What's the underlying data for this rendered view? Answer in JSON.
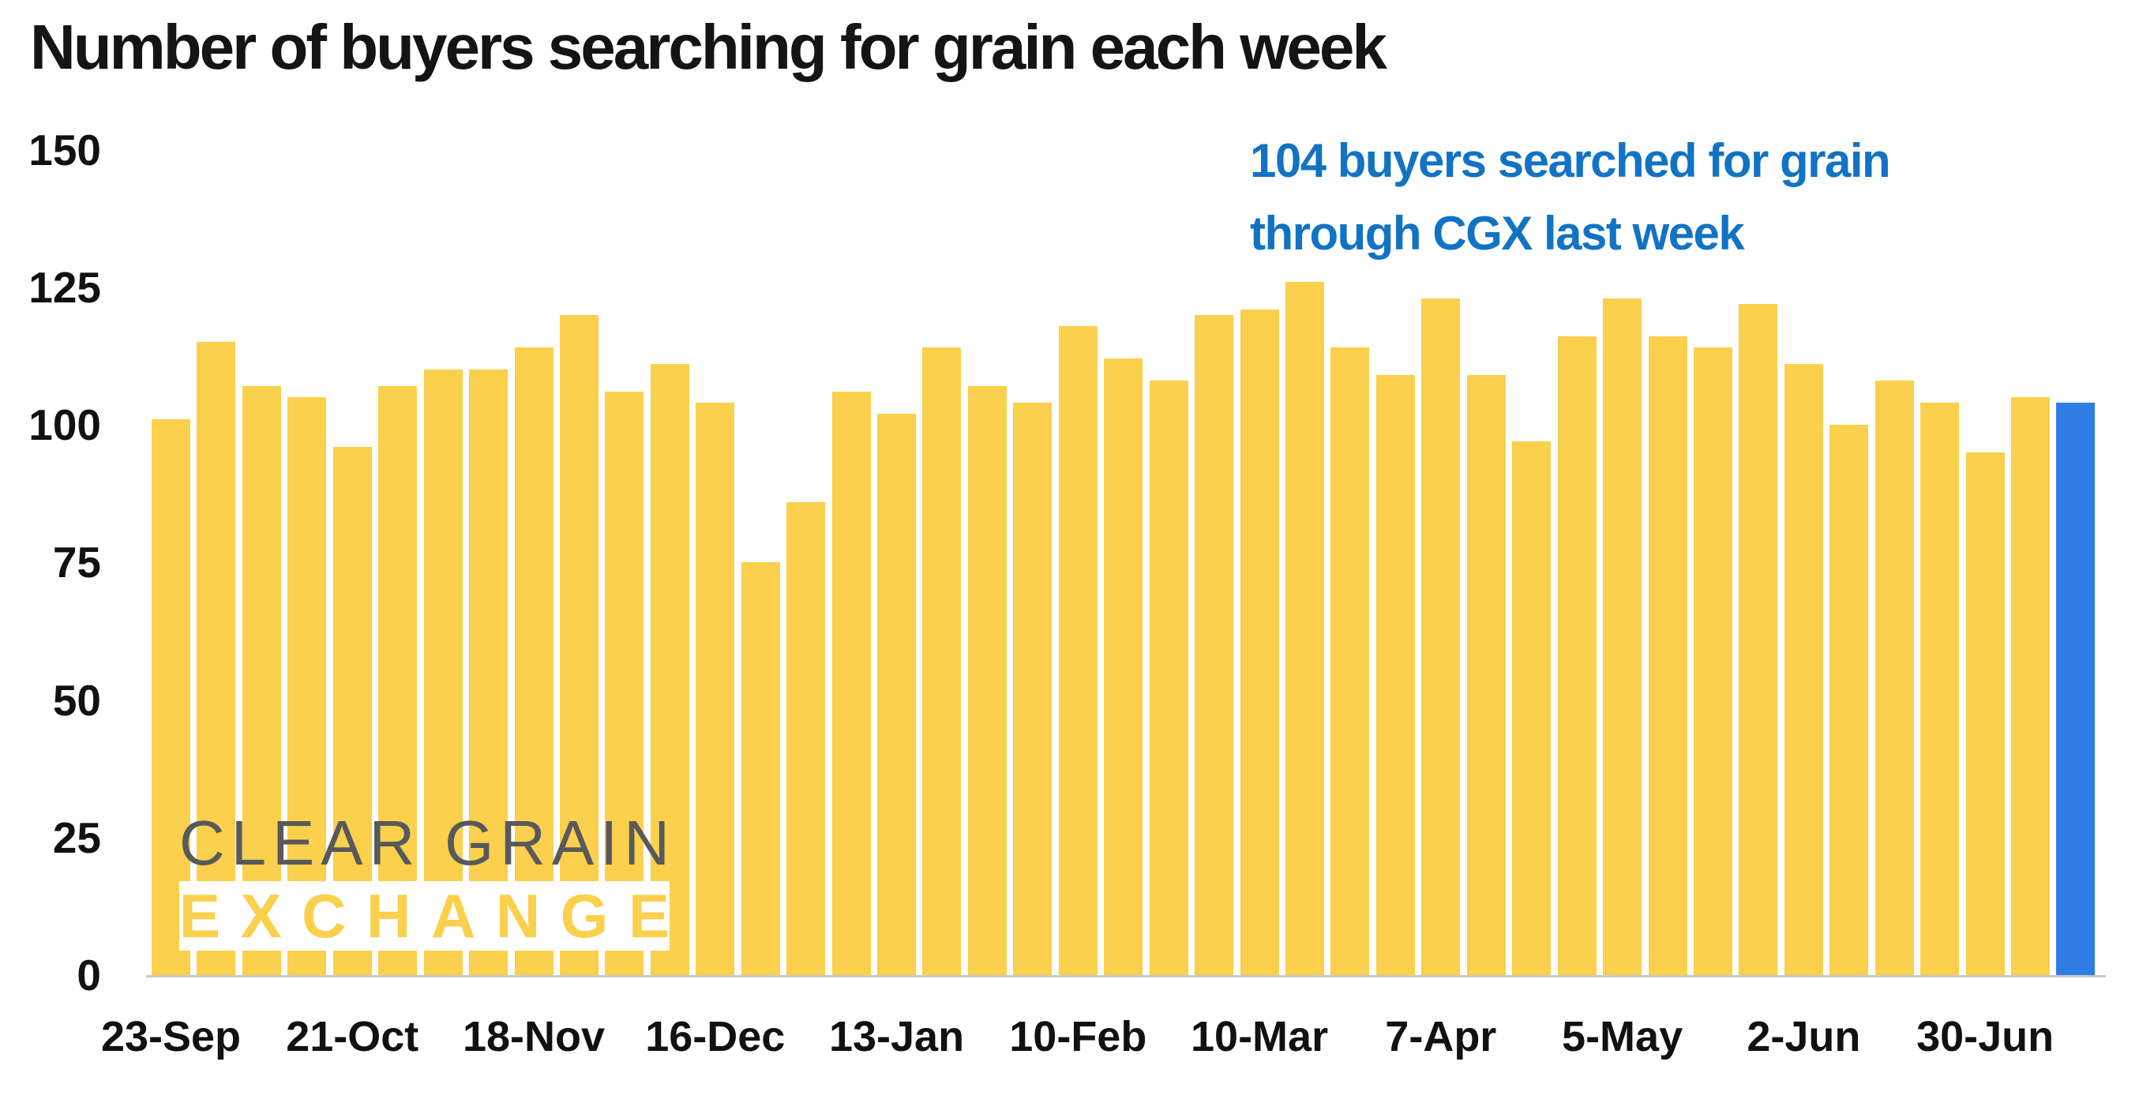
{
  "title": "Number of buyers searching for grain each week",
  "annotation": {
    "line1": "104 buyers searched for grain",
    "line2": "through CGX last week",
    "color": "#1273C4"
  },
  "watermark": {
    "line1": "CLEAR GRAIN",
    "line2": "EXCHANGE",
    "text_color": "#58595B"
  },
  "chart_data": {
    "type": "bar",
    "title": "Number of buyers searching for grain each week",
    "values": [
      101,
      115,
      107,
      105,
      96,
      107,
      110,
      110,
      114,
      120,
      106,
      111,
      104,
      75,
      86,
      106,
      102,
      114,
      107,
      104,
      118,
      112,
      108,
      120,
      121,
      126,
      114,
      109,
      123,
      109,
      97,
      116,
      123,
      116,
      114,
      122,
      111,
      100,
      108,
      104,
      95,
      105,
      104
    ],
    "tick_labels": [
      "23-Sep",
      "21-Oct",
      "18-Nov",
      "16-Dec",
      "13-Jan",
      "10-Feb",
      "10-Mar",
      "7-Apr",
      "5-May",
      "2-Jun",
      "30-Jun"
    ],
    "tick_indices": [
      0,
      4,
      8,
      12,
      16,
      20,
      24,
      28,
      32,
      36,
      40
    ],
    "yticks": [
      0,
      25,
      50,
      75,
      100,
      125,
      150
    ],
    "ylim": [
      0,
      150
    ],
    "grid": false,
    "legend": "none",
    "bar_color": "#FAD04C",
    "highlight_color": "#2F7DE3",
    "highlight_index": 42,
    "highlight_meaning": "last week (104 buyers)",
    "axis_line_color": "#C9C9C9"
  }
}
